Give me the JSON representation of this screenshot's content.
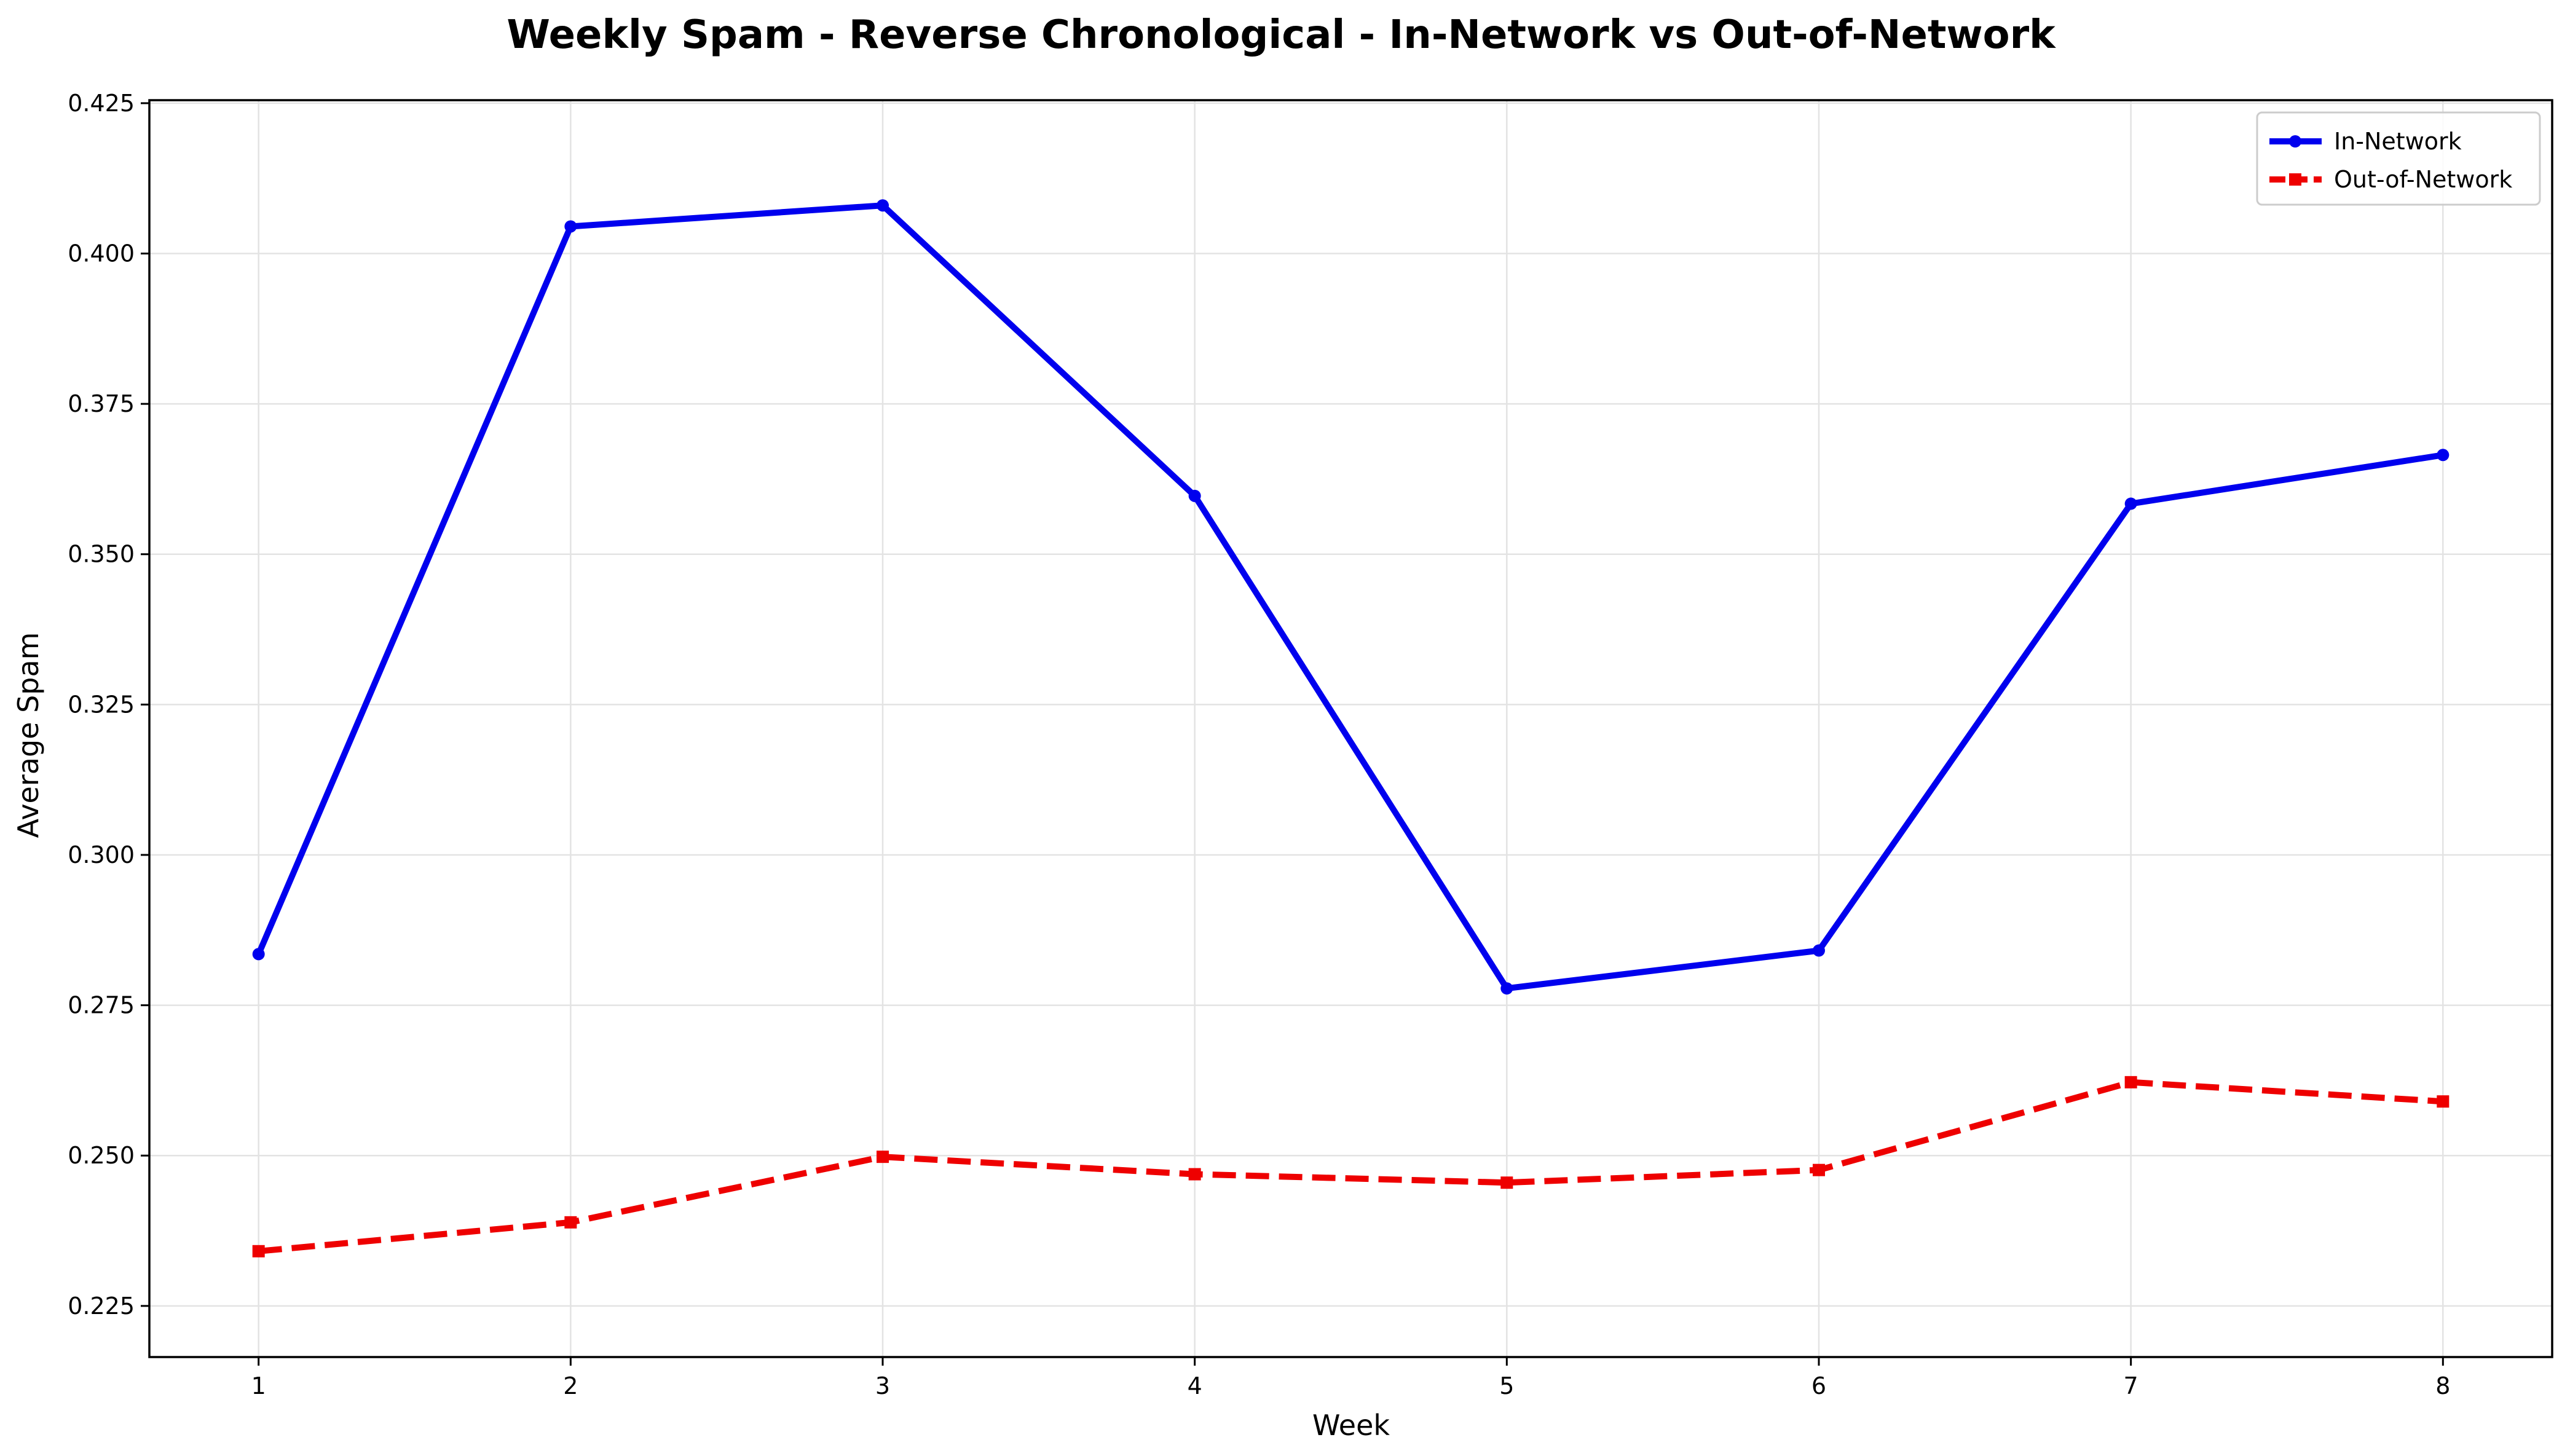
{
  "chart_data": {
    "type": "line",
    "title": "Weekly Spam - Reverse Chronological - In-Network vs Out-of-Network",
    "xlabel": "Week",
    "ylabel": "Average Spam",
    "x": [
      1,
      2,
      3,
      4,
      5,
      6,
      7,
      8
    ],
    "x_tick_labels": [
      "1",
      "2",
      "3",
      "4",
      "5",
      "6",
      "7",
      "8"
    ],
    "y_tick_labels": [
      "0.225",
      "0.250",
      "0.275",
      "0.300",
      "0.325",
      "0.350",
      "0.375",
      "0.400",
      "0.425"
    ],
    "y_ticks": [
      0.225,
      0.25,
      0.275,
      0.3,
      0.325,
      0.35,
      0.375,
      0.4,
      0.425
    ],
    "xlim": [
      0.65,
      8.35
    ],
    "ylim": [
      0.2165,
      0.4255
    ],
    "grid": true,
    "legend_position": "top-right",
    "series": [
      {
        "name": "In-Network",
        "color": "#0000ee",
        "line_style": "solid",
        "marker": "circle",
        "values": [
          0.2835,
          0.4045,
          0.408,
          0.3597,
          0.2778,
          0.2841,
          0.3584,
          0.3665
        ]
      },
      {
        "name": "Out-of-Network",
        "color": "#ee0000",
        "line_style": "dashed",
        "marker": "square",
        "values": [
          0.2341,
          0.2389,
          0.2498,
          0.2469,
          0.2455,
          0.2476,
          0.2622,
          0.259
        ]
      }
    ]
  }
}
